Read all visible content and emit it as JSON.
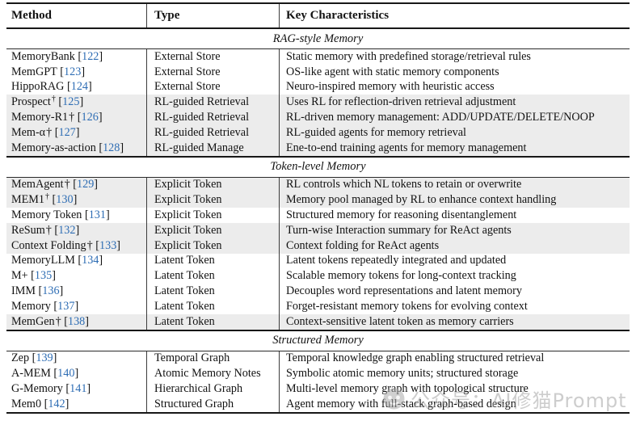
{
  "table": {
    "columns": [
      "Method",
      "Type",
      "Key Characteristics"
    ],
    "symbols": {
      "dagger": "†"
    },
    "sections": [
      {
        "label": "RAG-style Memory",
        "rows": [
          {
            "method": "MemoryBank",
            "dagger": "none",
            "cite": "122",
            "type": "External Store",
            "desc": "Static memory with predefined storage/retrieval rules",
            "shaded": false
          },
          {
            "method": "MemGPT",
            "dagger": "none",
            "cite": "123",
            "type": "External Store",
            "desc": "OS-like agent with static memory components",
            "shaded": false
          },
          {
            "method": "HippoRAG",
            "dagger": "none",
            "cite": "124",
            "type": "External Store",
            "desc": "Neuro-inspired memory with heuristic access",
            "shaded": false
          },
          {
            "method": "Prospect",
            "dagger": "sup",
            "cite": "125",
            "type": "RL-guided Retrieval",
            "desc": "Uses RL for reflection-driven retrieval adjustment",
            "shaded": true
          },
          {
            "method": "Memory-R1",
            "dagger": "inline",
            "cite": "126",
            "type": "RL-guided Retrieval",
            "desc": "RL-driven memory management: ADD/UPDATE/DELETE/NOOP",
            "shaded": true
          },
          {
            "method": "Mem-α",
            "dagger": "inline",
            "cite": "127",
            "type": "RL-guided Retrieval",
            "desc": "RL-guided agents for memory retrieval",
            "shaded": true
          },
          {
            "method": "Memory-as-action",
            "dagger": "none",
            "cite": "128",
            "type": "RL-guided Manage",
            "desc": "Ene-to-end training agents for memory management",
            "shaded": true
          }
        ]
      },
      {
        "label": "Token-level Memory",
        "rows": [
          {
            "method": "MemAgent",
            "dagger": "inline",
            "cite": "129",
            "type": "Explicit Token",
            "desc": "RL controls which NL tokens to retain or overwrite",
            "shaded": true
          },
          {
            "method": "MEM1",
            "dagger": "sup",
            "cite": "130",
            "type": "Explicit Token",
            "desc": "Memory pool managed by RL to enhance context handling",
            "shaded": true
          },
          {
            "method": "Memory Token",
            "dagger": "none",
            "cite": "131",
            "type": "Explicit Token",
            "desc": "Structured memory for reasoning disentanglement",
            "shaded": false
          },
          {
            "method": "ReSum",
            "dagger": "inline",
            "cite": "132",
            "type": "Explicit Token",
            "desc": "Turn-wise Interaction summary for ReAct agents",
            "shaded": true
          },
          {
            "method": "Context Folding",
            "dagger": "inline",
            "cite": "133",
            "type": "Explicit Token",
            "desc": "Context folding for ReAct agents",
            "shaded": true
          },
          {
            "method": "MemoryLLM",
            "dagger": "none",
            "cite": "134",
            "type": "Latent Token",
            "desc": "Latent tokens repeatedly integrated and updated",
            "shaded": false
          },
          {
            "method": "M+",
            "dagger": "none",
            "cite": "135",
            "type": "Latent Token",
            "desc": "Scalable memory tokens for long-context tracking",
            "shaded": false
          },
          {
            "method": "IMM",
            "dagger": "none",
            "cite": "136",
            "type": "Latent Token",
            "desc": "Decouples word representations and latent memory",
            "shaded": false
          },
          {
            "method": "Memory",
            "dagger": "none",
            "cite": "137",
            "type": "Latent Token",
            "desc": "Forget-resistant memory tokens for evolving context",
            "shaded": false
          },
          {
            "method": "MemGen",
            "dagger": "inline",
            "cite": "138",
            "type": "Latent Token",
            "desc": "Context-sensitive latent token as memory carriers",
            "shaded": true
          }
        ]
      },
      {
        "label": "Structured Memory",
        "rows": [
          {
            "method": "Zep",
            "dagger": "none",
            "cite": "139",
            "type": "Temporal Graph",
            "desc": "Temporal knowledge graph enabling structured retrieval",
            "shaded": false
          },
          {
            "method": "A-MEM",
            "dagger": "none",
            "cite": "140",
            "type": "Atomic Memory Notes",
            "desc": "Symbolic atomic memory units; structured storage",
            "shaded": false
          },
          {
            "method": "G-Memory",
            "dagger": "none",
            "cite": "141",
            "type": "Hierarchical Graph",
            "desc": "Multi-level memory graph with topological structure",
            "shaded": false
          },
          {
            "method": "Mem0",
            "dagger": "none",
            "cite": "142",
            "type": "Structured Graph",
            "desc": "Agent memory with full-stack graph-based design",
            "shaded": false
          }
        ]
      }
    ]
  },
  "watermark": {
    "text": "公众号：AI修猫Prompt",
    "icon": "watermark-logo-icon"
  },
  "colors": {
    "citation_blue": "#2e6db4",
    "row_shade": "#ececec",
    "rule_dark": "#171717",
    "watermark_gray": "#a6a6a6"
  }
}
